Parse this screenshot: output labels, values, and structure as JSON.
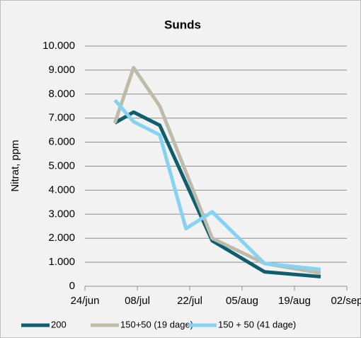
{
  "chart_data": {
    "type": "line",
    "title": "Sunds",
    "ylabel": "Nitrat, ppm",
    "xlim": [
      "06-24",
      "09-02"
    ],
    "xticks": [
      {
        "value": "06-24",
        "label": "24/jun"
      },
      {
        "value": "07-08",
        "label": "08/jul"
      },
      {
        "value": "07-22",
        "label": "22/jul"
      },
      {
        "value": "08-05",
        "label": "05/aug"
      },
      {
        "value": "08-19",
        "label": "19/aug"
      },
      {
        "value": "09-02",
        "label": "02/sep"
      }
    ],
    "ylim": [
      0,
      10000
    ],
    "yticks": [
      0,
      {
        "value": 1000,
        "label": "1.000"
      },
      {
        "value": 2000,
        "label": "2.000"
      },
      {
        "value": 3000,
        "label": "3.000"
      },
      {
        "value": 4000,
        "label": "4.000"
      },
      {
        "value": 5000,
        "label": "5.000"
      },
      {
        "value": 6000,
        "label": "6.000"
      },
      {
        "value": 7000,
        "label": "7.000"
      },
      {
        "value": 8000,
        "label": "8.000"
      },
      {
        "value": 9000,
        "label": "9.000"
      },
      {
        "value": 10000,
        "label": "10.000"
      }
    ],
    "grid": true,
    "legend": "bottom",
    "series": [
      {
        "name": "200",
        "color": "#0e5e6f",
        "x": [
          "07-02",
          "07-07",
          "07-14",
          "07-28",
          "08-11",
          "08-26"
        ],
        "values": [
          6800,
          7250,
          6700,
          1900,
          600,
          400
        ]
      },
      {
        "name": "150+50 (19 dage)",
        "color": "#bdbcaa",
        "x": [
          "07-02",
          "07-07",
          "07-14",
          "07-28",
          "08-11",
          "08-26"
        ],
        "values": [
          6800,
          9100,
          7500,
          2000,
          950,
          550
        ]
      },
      {
        "name": "150 + 50 (41 dage)",
        "color": "#86d2f2",
        "x": [
          "07-02",
          "07-07",
          "07-14",
          "07-21",
          "07-28",
          "08-11",
          "08-26"
        ],
        "values": [
          7750,
          6850,
          6300,
          2400,
          3100,
          950,
          700
        ]
      }
    ]
  }
}
